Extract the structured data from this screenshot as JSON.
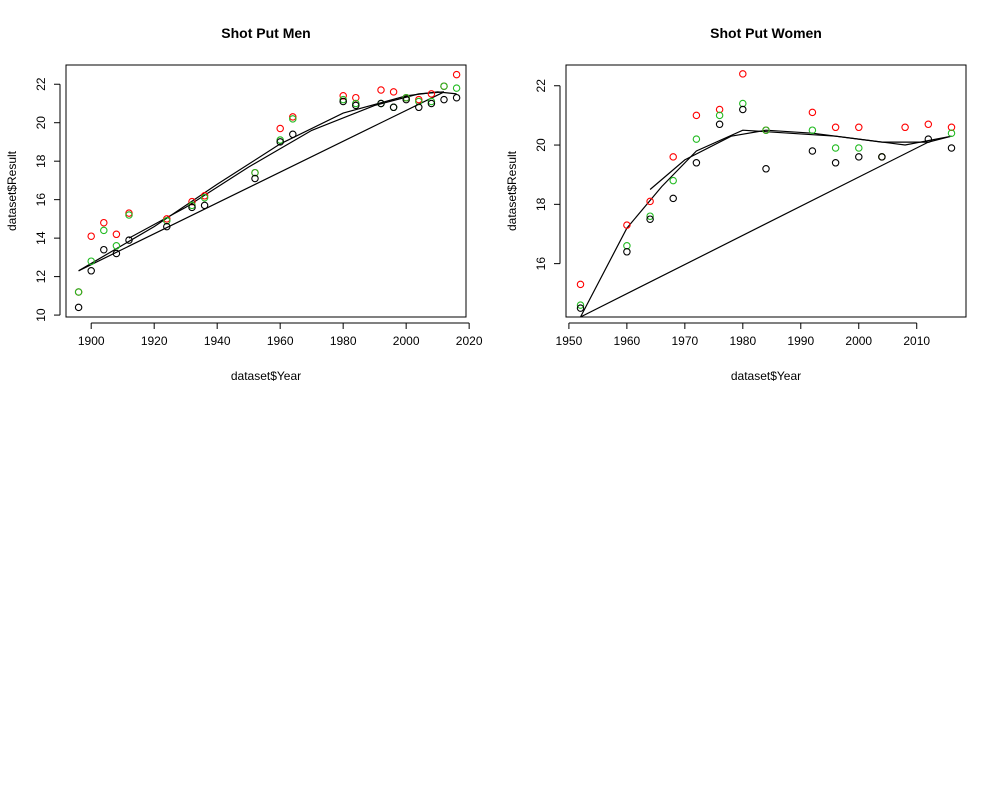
{
  "colors": {
    "red": "#ff0000",
    "green": "#22bb22",
    "black": "#000000"
  },
  "chart_data": [
    {
      "type": "scatter",
      "title": "Shot Put Men",
      "xlabel": "dataset$Year",
      "ylabel": "dataset$Result",
      "xlim": [
        1892,
        2019
      ],
      "ylim": [
        9.9,
        23.0
      ],
      "xticks": [
        1900,
        1920,
        1940,
        1960,
        1980,
        2000,
        2020
      ],
      "yticks": [
        10,
        12,
        14,
        16,
        18,
        20,
        22
      ],
      "x": [
        1896,
        1900,
        1904,
        1908,
        1912,
        1924,
        1932,
        1936,
        1952,
        1960,
        1964,
        1980,
        1984,
        1992,
        1996,
        2000,
        2004,
        2008,
        2012,
        2016
      ],
      "series": [
        {
          "color": "red",
          "values": [
            11.2,
            14.1,
            14.8,
            14.2,
            15.3,
            15.0,
            15.9,
            16.2,
            17.4,
            19.7,
            20.3,
            21.4,
            21.3,
            21.7,
            21.6,
            21.3,
            21.2,
            21.5,
            21.9,
            22.5
          ]
        },
        {
          "color": "green",
          "values": [
            11.2,
            12.8,
            14.4,
            13.6,
            15.2,
            14.9,
            15.7,
            16.1,
            17.4,
            19.1,
            20.2,
            21.2,
            21.0,
            21.0,
            20.8,
            21.3,
            21.1,
            21.1,
            21.9,
            21.8
          ]
        },
        {
          "color": "black",
          "values": [
            10.4,
            12.3,
            13.4,
            13.2,
            13.9,
            14.6,
            15.6,
            15.7,
            17.1,
            19.0,
            19.4,
            21.1,
            20.9,
            21.0,
            20.8,
            21.2,
            20.8,
            21.0,
            21.2,
            21.3
          ]
        }
      ],
      "fits": [
        {
          "x": [
            1896,
            1920,
            1940,
            1960,
            1980,
            2000,
            2010,
            2016
          ],
          "y": [
            12.3,
            14.6,
            16.8,
            18.9,
            20.5,
            21.4,
            21.6,
            21.5
          ]
        },
        {
          "x": [
            1912,
            1930,
            1950,
            1970,
            1990,
            2004,
            2012
          ],
          "y": [
            14.0,
            15.6,
            17.7,
            19.6,
            20.9,
            21.5,
            21.6
          ]
        },
        {
          "x": [
            1896,
            2012
          ],
          "y": [
            12.3,
            21.6
          ]
        }
      ]
    },
    {
      "type": "scatter",
      "title": "Shot Put Women",
      "xlabel": "dataset$Year",
      "ylabel": "dataset$Result",
      "xlim": [
        1949.5,
        2018.5
      ],
      "ylim": [
        14.2,
        22.7
      ],
      "xticks": [
        1950,
        1960,
        1970,
        1980,
        1990,
        2000,
        2010
      ],
      "yticks": [
        16,
        18,
        20,
        22
      ],
      "x": [
        1952,
        1960,
        1964,
        1968,
        1972,
        1976,
        1980,
        1984,
        1992,
        1996,
        2000,
        2004,
        2008,
        2012,
        2016
      ],
      "series": [
        {
          "color": "red",
          "values": [
            15.3,
            17.3,
            18.1,
            19.6,
            21.0,
            21.2,
            22.4,
            20.5,
            21.1,
            20.6,
            20.6,
            19.6,
            20.6,
            20.7,
            20.6
          ]
        },
        {
          "color": "green",
          "values": [
            14.6,
            16.6,
            17.6,
            18.8,
            20.2,
            21.0,
            21.4,
            20.5,
            20.5,
            19.9,
            19.9,
            19.6,
            null,
            null,
            20.4
          ]
        },
        {
          "color": "black",
          "values": [
            14.5,
            16.4,
            17.5,
            18.2,
            19.4,
            20.7,
            21.2,
            19.2,
            19.8,
            19.4,
            19.6,
            19.6,
            null,
            20.2,
            19.9
          ]
        }
      ],
      "fits": [
        {
          "x": [
            1952,
            1960,
            1966,
            1972,
            1980,
            1988,
            1996,
            2004,
            2012,
            2016
          ],
          "y": [
            14.2,
            17.2,
            18.6,
            19.8,
            20.5,
            20.4,
            20.3,
            20.1,
            20.1,
            20.3
          ]
        },
        {
          "x": [
            1964,
            1970,
            1978,
            1984,
            1992,
            2000,
            2008,
            2016
          ],
          "y": [
            18.5,
            19.5,
            20.3,
            20.5,
            20.4,
            20.2,
            20.0,
            20.3
          ]
        },
        {
          "x": [
            1952,
            2012
          ],
          "y": [
            14.2,
            20.1
          ]
        }
      ]
    }
  ]
}
